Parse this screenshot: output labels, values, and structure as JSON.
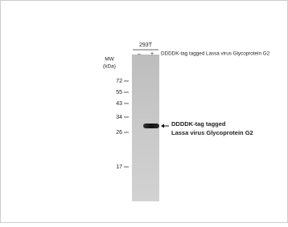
{
  "sample": "293T",
  "lanes": [
    "–",
    "+"
  ],
  "lane_header": "DDDDK-tag tagged Lassa virus Glycoprotein G2",
  "mw_label": [
    "MW",
    "(kDa)"
  ],
  "markers": [
    72,
    55,
    43,
    34,
    26,
    17
  ],
  "band_annotation": [
    "DDDDK-tag  tagged",
    "Lassa virus Glycoprotein G2"
  ]
}
